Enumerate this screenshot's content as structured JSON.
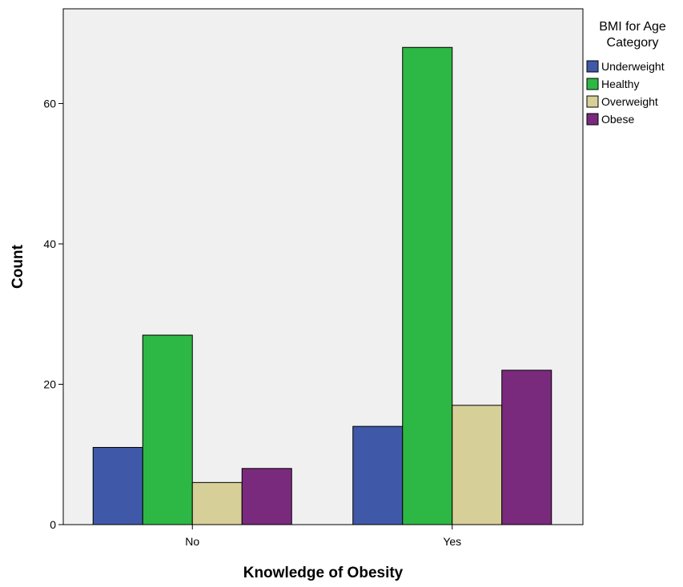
{
  "chart_data": {
    "type": "bar",
    "categories": [
      "No",
      "Yes"
    ],
    "series": [
      {
        "name": "Underweight",
        "values": [
          11,
          14
        ],
        "color": "#3f59a8"
      },
      {
        "name": "Healthy",
        "values": [
          27,
          68
        ],
        "color": "#2db744"
      },
      {
        "name": "Overweight",
        "values": [
          6,
          17
        ],
        "color": "#d6cf98"
      },
      {
        "name": "Obese",
        "values": [
          8,
          22
        ],
        "color": "#7a2a7d"
      }
    ],
    "xlabel": "Knowledge of Obesity",
    "ylabel": "Count",
    "ylim": [
      0,
      73.5
    ],
    "yticks": [
      0,
      20,
      40,
      60
    ],
    "legend": {
      "title_line1": "BMI for Age",
      "title_line2": "Category",
      "placement": "right"
    },
    "grid": false,
    "plot_background": "#f0f0f0"
  }
}
